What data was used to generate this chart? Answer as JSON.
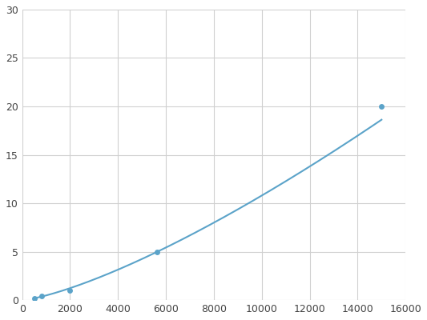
{
  "x": [
    500,
    800,
    2000,
    5625,
    15000
  ],
  "y": [
    0.2,
    0.4,
    1.0,
    5.0,
    20.0
  ],
  "line_color": "#5ba3c9",
  "marker_color": "#5ba3c9",
  "marker_size": 5,
  "line_width": 1.5,
  "xlim": [
    0,
    16000
  ],
  "ylim": [
    0,
    30
  ],
  "xticks": [
    0,
    2000,
    4000,
    6000,
    8000,
    10000,
    12000,
    14000,
    16000
  ],
  "yticks": [
    0,
    5,
    10,
    15,
    20,
    25,
    30
  ],
  "grid_color": "#d0d0d0",
  "background_color": "#ffffff",
  "figure_bg": "#ffffff"
}
